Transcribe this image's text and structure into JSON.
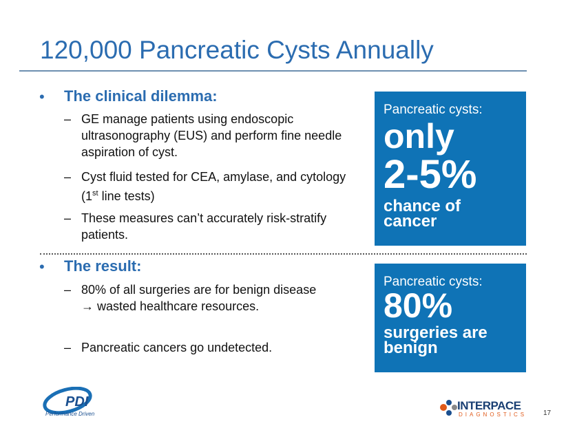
{
  "header": {
    "title": "120,000 Pancreatic Cysts Annually"
  },
  "sections": [
    {
      "heading": "The clinical dilemma:",
      "items": [
        "GE manage patients using endoscopic ultrasonography (EUS) and perform fine needle aspiration of cyst.",
        {
          "text": "Cyst fluid tested for CEA, amylase, and cytology (1",
          "superscript": "st",
          "text_after": " line tests)"
        },
        "These measures can’t accurately risk-stratify patients."
      ]
    },
    {
      "heading": "The result:",
      "items": [
        "80% of all surgeries are for benign disease → wasted healthcare resources.",
        "Pancreatic cancers go undetected."
      ]
    }
  ],
  "callouts": [
    {
      "label": "Pancreatic cysts:",
      "figure_word": "only",
      "figure": "2-5%",
      "caption": "chance of cancer"
    },
    {
      "label": "Pancreatic cysts:",
      "figure": "80%",
      "caption": "surgeries are benign"
    }
  ],
  "footer": {
    "left_logo": {
      "name": "PDI",
      "tagline": "Performance Driven"
    },
    "right_logo": {
      "name": "INTERPACE",
      "tagline": "DIAGNOSTICS"
    },
    "page_number": "17"
  }
}
